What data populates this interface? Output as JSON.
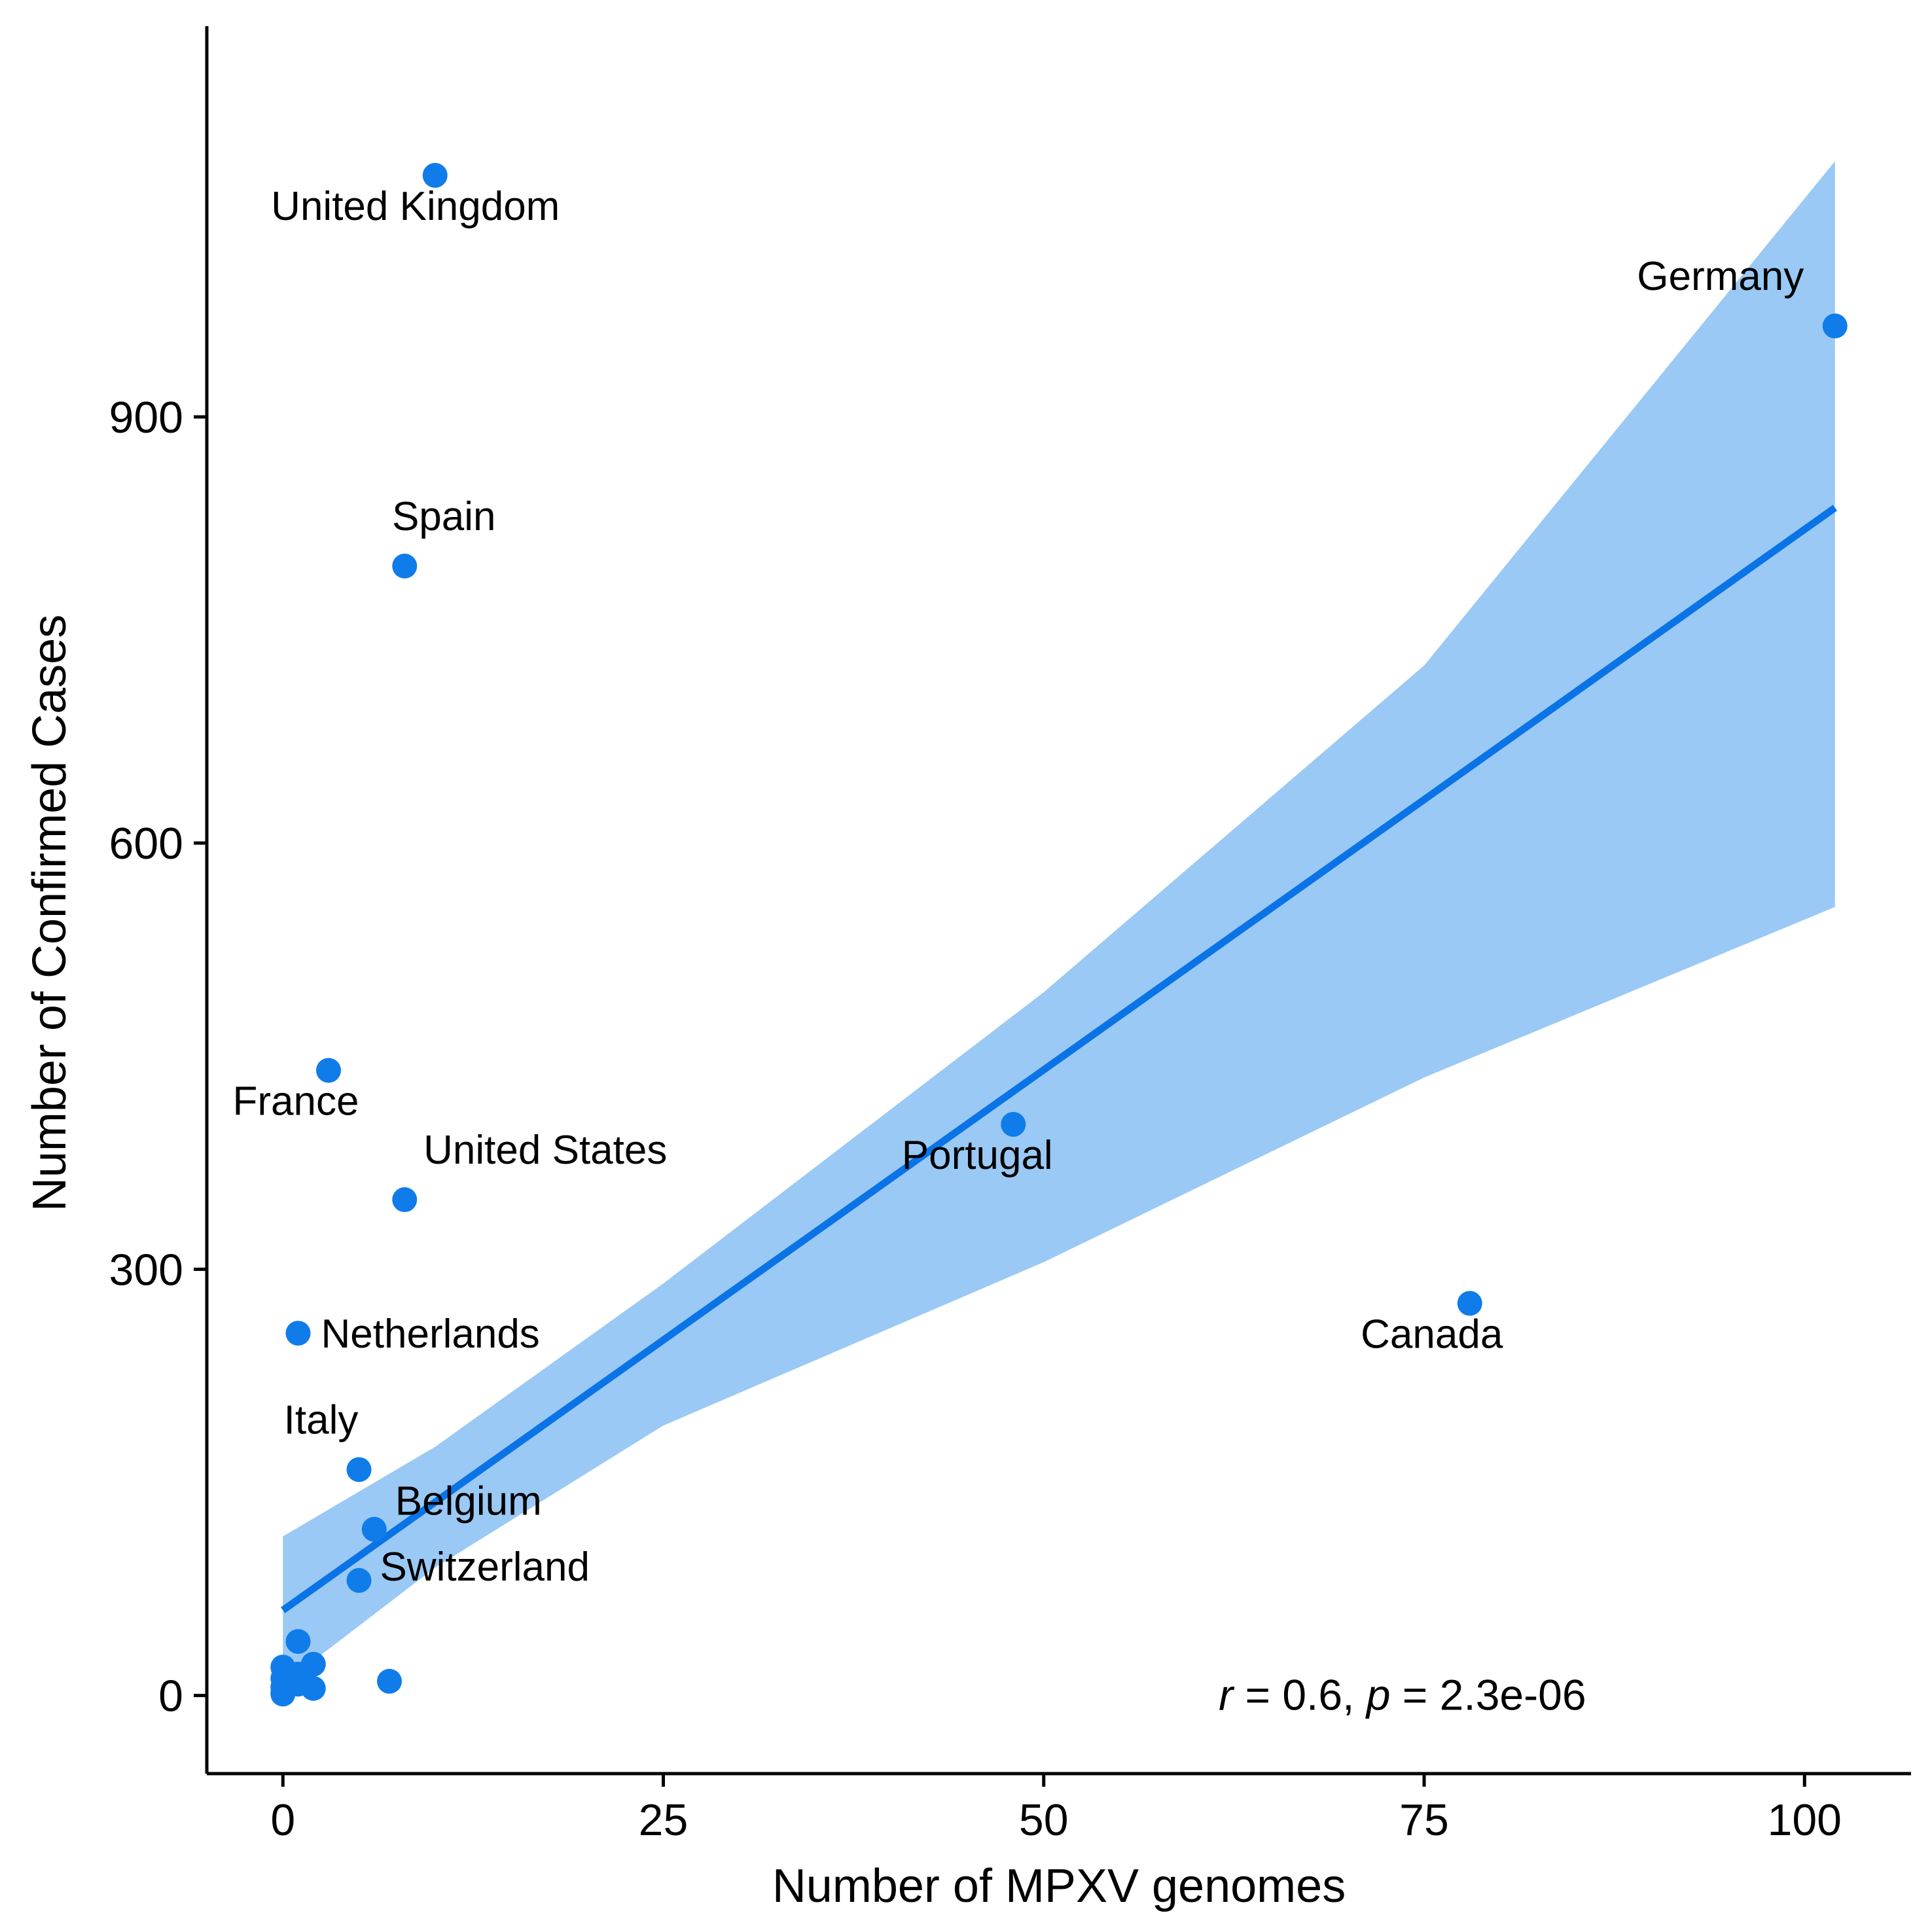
{
  "chart_data": {
    "type": "scatter",
    "xlabel": "Number of MPXV genomes",
    "ylabel": "Number of Confirmed Cases",
    "xlim": [
      -5,
      107
    ],
    "ylim": [
      -55,
      1175
    ],
    "x_ticks": [
      0,
      25,
      50,
      75,
      100
    ],
    "y_ticks": [
      0,
      300,
      600,
      900
    ],
    "grid": false,
    "colors": {
      "point": "#0f7cea",
      "line": "#0a74e6",
      "ribbon": "#9ac9f5"
    },
    "points": [
      {
        "x": 10,
        "y": 1070,
        "label": "United Kingdom"
      },
      {
        "x": 102,
        "y": 964,
        "label": "Germany"
      },
      {
        "x": 8,
        "y": 795,
        "label": "Spain"
      },
      {
        "x": 3,
        "y": 440,
        "label": "France"
      },
      {
        "x": 48,
        "y": 402,
        "label": "Portugal"
      },
      {
        "x": 8,
        "y": 349,
        "label": "United States"
      },
      {
        "x": 78,
        "y": 276,
        "label": "Canada"
      },
      {
        "x": 1,
        "y": 255,
        "label": "Netherlands"
      },
      {
        "x": 5,
        "y": 159,
        "label": "Italy"
      },
      {
        "x": 6,
        "y": 117,
        "label": "Belgium"
      },
      {
        "x": 5,
        "y": 81,
        "label": "Switzerland"
      },
      {
        "x": 1,
        "y": 38,
        "label": ""
      },
      {
        "x": 2,
        "y": 22,
        "label": ""
      },
      {
        "x": 0,
        "y": 20,
        "label": ""
      },
      {
        "x": 1,
        "y": 15,
        "label": ""
      },
      {
        "x": 0,
        "y": 12,
        "label": ""
      },
      {
        "x": 7,
        "y": 10,
        "label": ""
      },
      {
        "x": 1,
        "y": 8,
        "label": ""
      },
      {
        "x": 0,
        "y": 6,
        "label": ""
      },
      {
        "x": 2,
        "y": 5,
        "label": ""
      },
      {
        "x": 0,
        "y": 2,
        "label": ""
      },
      {
        "x": 0,
        "y": 1,
        "label": ""
      }
    ],
    "regression": {
      "x": [
        0,
        102
      ],
      "y": [
        60,
        836
      ],
      "ci_upper": [
        [
          0,
          112
        ],
        [
          10,
          175
        ],
        [
          25,
          290
        ],
        [
          50,
          495
        ],
        [
          75,
          725
        ],
        [
          102,
          1080
        ]
      ],
      "ci_lower": [
        [
          0,
          8
        ],
        [
          10,
          90
        ],
        [
          25,
          190
        ],
        [
          50,
          305
        ],
        [
          75,
          435
        ],
        [
          102,
          555
        ]
      ]
    },
    "annotation": {
      "r_sym": "r",
      "r_rest": " = 0.6, ",
      "p_sym": "p",
      "p_rest": " = 2.3e-06",
      "x": 61.5,
      "y": 0
    }
  }
}
